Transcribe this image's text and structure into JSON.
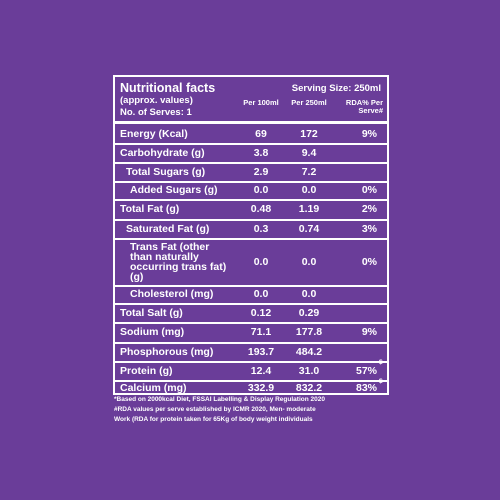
{
  "panel": {
    "title": "Nutritional facts",
    "serving_size": "Serving Size: 250ml",
    "subtitle": "(approx. values)",
    "serves": "No. of Serves: 1",
    "columns": [
      "Per 100ml",
      "Per 250ml",
      "RDA% Per Serve#"
    ],
    "rows": [
      [
        "Energy (Kcal)",
        "69",
        "172",
        "9%"
      ],
      [
        "Carbohydrate (g)",
        "3.8",
        "9.4"
      ],
      [
        "Total Sugars (g)",
        "2.9",
        "7.2"
      ],
      [
        "Added Sugars (g)",
        "0.0",
        "0.0",
        "0%"
      ],
      [
        "Total Fat (g)",
        "0.48",
        "1.19",
        "2%"
      ],
      [
        "Saturated Fat (g)",
        "0.3",
        "0.74",
        "3%"
      ],
      [
        "Trans Fat (other than naturally occurring trans fat) (g)",
        "0.0",
        "0.0",
        "0%"
      ],
      [
        "Cholesterol (mg)",
        "0.0",
        "0.0"
      ],
      [
        "Total Salt (g)",
        "0.12",
        "0.29"
      ],
      [
        "Sodium (mg)",
        "71.1",
        "177.8",
        "9%"
      ],
      [
        "Phosphorous (mg)",
        "193.7",
        "484.2"
      ],
      [
        "Protein (g)",
        "12.4",
        "31.0",
        "57%",
        "$"
      ],
      [
        "Calcium (mg)",
        "332.9",
        "832.2",
        "83%",
        "$"
      ]
    ],
    "footnotes": [
      "*Based on 2000kcal Diet, FSSAI Labelling & Display Regulation 2020",
      "#RDA values per serve established by ICMR 2020, Men- moderate",
      "Work (RDA for protein taken for 65Kg of body weight individuals"
    ]
  }
}
